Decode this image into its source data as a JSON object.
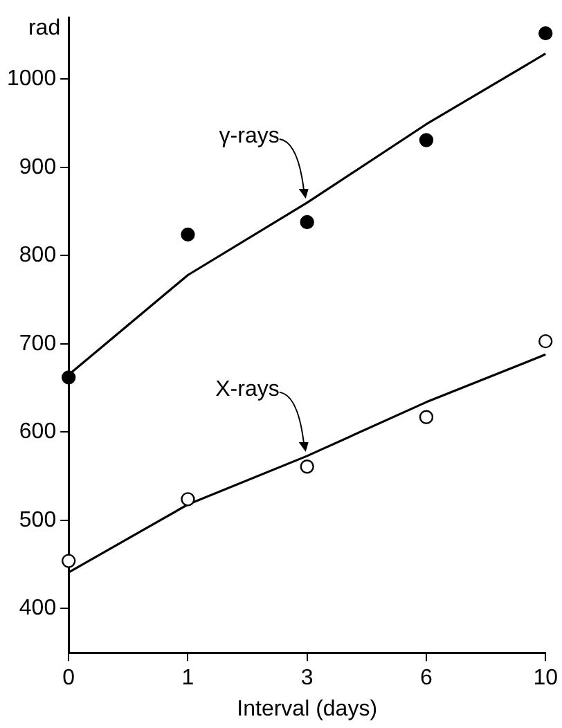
{
  "chart_data": {
    "type": "scatter",
    "xlabel": "Interval (days)",
    "ylabel": "rad",
    "categories": [
      "0",
      "1",
      "3",
      "6",
      "10"
    ],
    "series": [
      {
        "color": "#000000",
        "marker": "circle",
        "values": [
          662,
          824,
          838,
          931,
          1052
        ]
      },
      {
        "color": "#ffffff",
        "marker": "circle",
        "values": [
          454,
          524,
          561,
          617,
          703
        ]
      },
      {
        "type": "line",
        "color": "#000000",
        "marker": "none",
        "values": [
          665,
          778,
          860,
          949,
          1029
        ]
      },
      {
        "type": "line",
        "color": "#000000",
        "marker": "none",
        "values": [
          441,
          518,
          573,
          634,
          688
        ]
      }
    ],
    "annotations": [
      {
        "text": "γ-rays",
        "x": "3",
        "y": 860
      },
      {
        "text": "X-rays",
        "x": "3",
        "y": 573
      }
    ],
    "ylim": [
      350,
      1070
    ],
    "yticks": [
      400,
      500,
      600,
      700,
      800,
      900,
      1000
    ],
    "grid": false,
    "legend": false,
    "line_style": "solid"
  }
}
